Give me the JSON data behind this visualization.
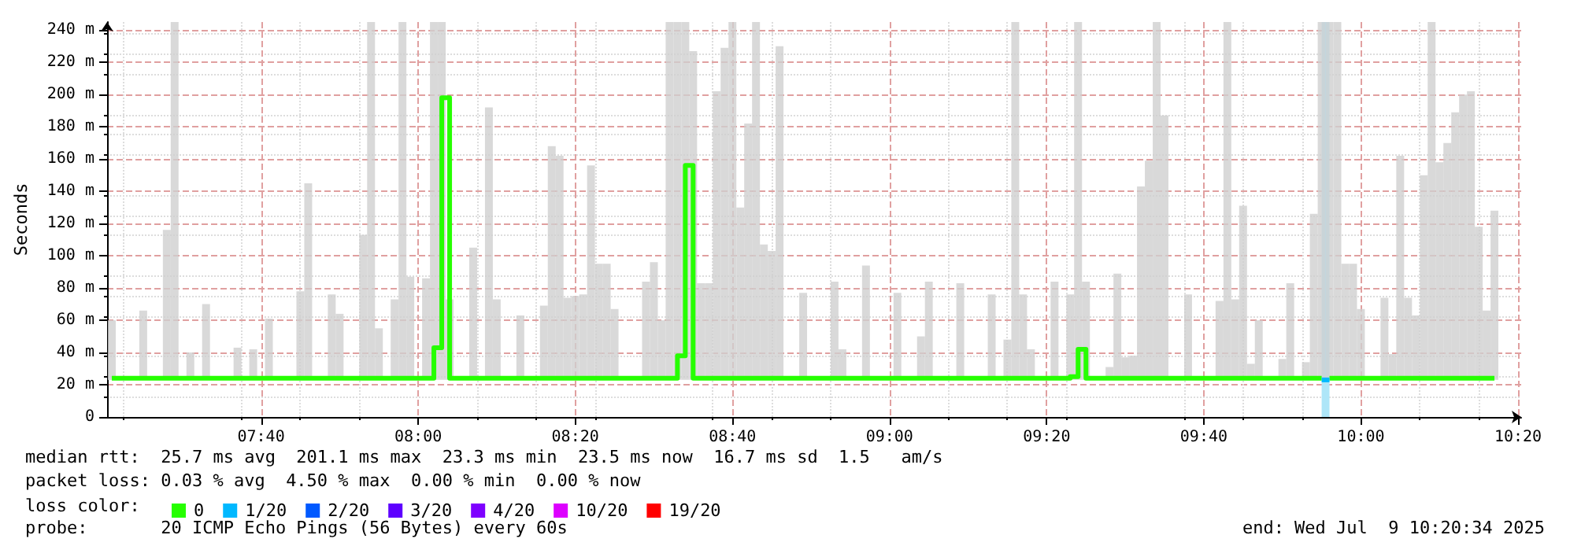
{
  "chart_data": {
    "type": "step",
    "ylabel": "Seconds",
    "legend_title": "loss color:",
    "annotations": [
      "median rtt:  25.7 ms avg  201.1 ms max  23.3 ms min  23.5 ms now  16.7 ms sd  1.5   am/s",
      "packet loss: 0.03 % avg  4.50 % max  0.00 % min  0.00 % now",
      "probe:       20 ICMP Echo Pings (56 Bytes) every 60s",
      "end: Wed Jul  9 10:20:34 2025"
    ],
    "x": [
      7.35,
      7.3667,
      7.3833,
      7.4,
      7.4167,
      7.4333,
      7.45,
      7.4667,
      7.4833,
      7.5,
      7.5167,
      7.5333,
      7.55,
      7.5667,
      7.5833,
      7.6,
      7.6167,
      7.6333,
      7.65,
      7.6667,
      7.6833,
      7.7,
      7.7167,
      7.7333,
      7.75,
      7.7667,
      7.7833,
      7.8,
      7.8167,
      7.8333,
      7.85,
      7.8667,
      7.8833,
      7.9,
      7.9167,
      7.9333,
      7.95,
      7.9667,
      7.9833,
      8.0,
      8.0167,
      8.0333,
      8.05,
      8.0667,
      8.0833,
      8.1,
      8.1167,
      8.1333,
      8.15,
      8.1667,
      8.1833,
      8.2,
      8.2167,
      8.2333,
      8.25,
      8.2667,
      8.2833,
      8.3,
      8.3167,
      8.3333,
      8.35,
      8.3667,
      8.3833,
      8.4,
      8.4167,
      8.4333,
      8.45,
      8.4667,
      8.4833,
      8.5,
      8.5167,
      8.5333,
      8.55,
      8.5667,
      8.5833,
      8.6,
      8.6167,
      8.6333,
      8.65,
      8.6667,
      8.6833,
      8.7,
      8.7167,
      8.7333,
      8.75,
      8.7667,
      8.7833,
      8.8,
      8.8167,
      8.8333,
      8.85,
      8.8667,
      8.8833,
      8.9,
      8.9167,
      8.9333,
      8.95,
      8.9667,
      8.9833,
      9.0,
      9.0167,
      9.0333,
      9.05,
      9.0667,
      9.0833,
      9.1,
      9.1167,
      9.1333,
      9.15,
      9.1667,
      9.1833,
      9.2,
      9.2167,
      9.2333,
      9.25,
      9.2667,
      9.2833,
      9.3,
      9.3167,
      9.3333,
      9.35,
      9.3667,
      9.3833,
      9.4,
      9.4167,
      9.4333,
      9.45,
      9.4667,
      9.4833,
      9.5,
      9.5167,
      9.5333,
      9.55,
      9.5667,
      9.5833,
      9.6,
      9.6167,
      9.6333,
      9.65,
      9.6667,
      9.6833,
      9.7,
      9.7167,
      9.7333,
      9.75,
      9.7667,
      9.7833,
      9.8,
      9.8167,
      9.8333,
      9.85,
      9.8667,
      9.8833,
      9.9,
      9.9167,
      9.9333,
      9.95,
      9.9667,
      9.9833,
      10.0,
      10.0167,
      10.0333,
      10.05,
      10.0667,
      10.0833,
      10.1,
      10.1167,
      10.1333,
      10.15,
      10.1667,
      10.1833,
      10.2,
      10.2167,
      10.2333,
      10.25,
      10.2667,
      10.2833
    ],
    "series": [
      {
        "name": "0",
        "color": "#26ff00",
        "values": [
          24,
          24,
          24,
          24,
          24,
          24,
          24,
          24,
          24,
          24,
          24,
          24,
          24,
          24,
          24,
          24,
          24,
          24,
          24,
          24,
          24,
          24,
          24,
          24,
          24,
          24,
          24,
          24,
          24,
          24,
          24,
          24,
          24,
          24,
          24,
          24,
          24,
          24,
          24,
          24,
          24,
          43,
          198,
          24,
          24,
          24,
          24,
          24,
          24,
          24,
          24,
          24,
          24,
          24,
          24,
          24,
          24,
          24,
          24,
          24,
          24,
          24,
          24,
          24,
          24,
          24,
          24,
          24,
          24,
          24,
          24,
          24,
          38,
          156,
          24,
          24,
          24,
          24,
          24,
          24,
          24,
          24,
          24,
          24,
          24,
          24,
          24,
          24,
          24,
          24,
          24,
          24,
          24,
          24,
          24,
          24,
          24,
          24,
          24,
          24,
          24,
          24,
          24,
          24,
          24,
          24,
          24,
          24,
          24,
          24,
          24,
          24,
          24,
          24,
          24,
          24,
          24,
          24,
          24,
          24,
          24,
          24,
          25,
          42,
          24,
          24,
          24,
          24,
          24,
          24,
          24,
          24,
          24,
          24,
          24,
          24,
          24,
          24,
          24,
          24,
          24,
          24,
          24,
          24,
          24,
          24,
          24,
          24,
          24,
          24,
          24,
          24,
          24,
          24,
          null,
          24,
          24,
          24,
          24,
          24,
          24,
          24,
          24,
          24,
          24,
          24,
          24,
          24,
          24,
          24,
          24,
          24,
          24,
          24,
          24,
          24,
          24
        ],
        "lower": [
          23,
          null,
          null,
          null,
          23,
          null,
          null,
          23,
          23,
          null,
          23,
          null,
          23,
          null,
          null,
          null,
          23,
          null,
          23,
          null,
          23,
          null,
          null,
          null,
          23,
          23,
          null,
          null,
          23,
          23,
          null,
          null,
          23,
          23,
          23,
          null,
          23,
          23,
          23,
          null,
          23,
          23,
          23,
          23,
          null,
          null,
          23,
          null,
          23,
          23,
          null,
          null,
          23,
          null,
          null,
          23,
          23,
          23,
          23,
          23,
          23,
          23,
          23,
          23,
          23,
          null,
          null,
          null,
          23,
          23,
          23,
          23,
          23,
          23,
          23,
          23,
          23,
          23,
          23,
          23,
          23,
          23,
          23,
          23,
          23,
          23,
          null,
          null,
          23,
          null,
          null,
          null,
          23,
          23,
          null,
          null,
          23,
          null,
          null,
          null,
          23,
          null,
          null,
          23,
          23,
          null,
          null,
          null,
          23,
          null,
          null,
          null,
          23,
          null,
          23,
          23,
          23,
          23,
          null,
          null,
          23,
          null,
          23,
          23,
          23,
          null,
          null,
          23,
          23,
          23,
          23,
          23,
          23,
          23,
          23,
          null,
          null,
          23,
          null,
          null,
          null,
          23,
          23,
          23,
          23,
          23,
          23,
          null,
          null,
          23,
          23,
          null,
          23,
          23,
          23,
          23,
          23,
          23,
          23,
          23,
          null,
          null,
          23,
          23,
          23,
          23,
          23,
          23,
          23,
          23,
          23,
          23,
          23,
          23,
          23,
          23,
          23
        ],
        "upper": [
          60,
          null,
          null,
          null,
          66,
          null,
          null,
          116,
          245,
          null,
          40,
          null,
          70,
          null,
          null,
          null,
          43,
          null,
          42,
          null,
          61,
          null,
          null,
          null,
          78,
          145,
          null,
          null,
          76,
          64,
          null,
          null,
          113,
          245,
          55,
          null,
          73,
          245,
          87,
          null,
          86,
          245,
          245,
          73,
          null,
          null,
          105,
          null,
          192,
          73,
          null,
          null,
          63,
          null,
          null,
          69,
          168,
          162,
          74,
          75,
          76,
          156,
          95,
          95,
          67,
          null,
          null,
          null,
          84,
          96,
          60,
          245,
          245,
          245,
          227,
          83,
          83,
          202,
          229,
          245,
          130,
          182,
          245,
          107,
          103,
          230,
          null,
          null,
          77,
          null,
          null,
          null,
          84,
          42,
          null,
          null,
          94,
          null,
          null,
          null,
          77,
          null,
          null,
          50,
          84,
          null,
          null,
          null,
          83,
          null,
          null,
          null,
          76,
          null,
          48,
          245,
          76,
          42,
          null,
          null,
          84,
          null,
          76,
          245,
          84,
          null,
          null,
          31,
          89,
          37,
          38,
          143,
          159,
          245,
          187,
          null,
          null,
          76,
          null,
          null,
          null,
          72,
          245,
          73,
          131,
          33,
          60,
          null,
          null,
          36,
          83,
          null,
          34,
          126,
          245,
          245,
          245,
          95,
          95,
          67,
          null,
          null,
          74,
          39,
          162,
          74,
          63,
          150,
          245,
          158,
          170,
          189,
          200,
          202,
          118,
          66,
          128
        ]
      },
      {
        "name": "1/20",
        "color": "#00b8ff",
        "x": [
          9.9167,
          9.9333
        ],
        "values": [
          23,
          23
        ]
      },
      {
        "name": "2/20",
        "color": "#0059ff",
        "values": [
          null,
          null,
          null,
          null,
          null,
          null,
          null,
          null,
          null,
          null,
          null,
          null,
          null,
          null,
          null,
          null,
          null,
          null,
          null,
          null,
          null,
          null,
          null,
          null,
          null,
          null,
          null,
          null,
          null,
          null,
          null,
          null,
          null,
          null,
          null,
          null,
          null,
          null,
          null,
          null,
          null,
          null,
          null,
          null,
          null,
          null,
          null,
          null,
          null,
          null,
          null,
          null,
          null,
          null,
          null,
          null,
          null,
          null,
          null,
          null,
          null,
          null,
          null,
          null,
          null,
          null,
          null,
          null,
          null,
          null,
          null,
          null,
          null,
          null,
          null,
          null,
          null,
          null,
          null,
          null,
          null,
          null,
          null,
          null,
          null,
          null,
          null,
          null,
          null,
          null,
          null,
          null,
          null,
          null,
          null,
          null,
          null,
          null,
          null,
          null,
          null,
          null,
          null,
          null,
          null,
          null,
          null,
          null,
          null,
          null,
          null,
          null,
          null,
          null,
          null,
          null,
          null,
          null,
          null,
          null,
          null,
          null,
          null,
          null,
          null,
          null,
          null,
          null,
          null,
          null,
          null,
          null,
          null,
          null,
          null,
          null,
          null,
          null,
          null,
          null,
          null,
          null,
          null,
          null,
          null,
          null,
          null,
          null,
          null,
          null,
          null,
          null,
          null,
          null,
          null,
          null,
          null,
          null,
          null,
          null,
          null,
          null,
          null,
          null,
          null,
          null,
          null,
          null,
          null,
          null,
          null,
          null,
          null,
          null,
          null,
          null,
          null
        ]
      },
      {
        "name": "3/20",
        "color": "#5e00ff",
        "values": [
          null,
          null,
          null,
          null,
          null,
          null,
          null,
          null,
          null,
          null,
          null,
          null,
          null,
          null,
          null,
          null,
          null,
          null,
          null,
          null,
          null,
          null,
          null,
          null,
          null,
          null,
          null,
          null,
          null,
          null,
          null,
          null,
          null,
          null,
          null,
          null,
          null,
          null,
          null,
          null,
          null,
          null,
          null,
          null,
          null,
          null,
          null,
          null,
          null,
          null,
          null,
          null,
          null,
          null,
          null,
          null,
          null,
          null,
          null,
          null,
          null,
          null,
          null,
          null,
          null,
          null,
          null,
          null,
          null,
          null,
          null,
          null,
          null,
          null,
          null,
          null,
          null,
          null,
          null,
          null,
          null,
          null,
          null,
          null,
          null,
          null,
          null,
          null,
          null,
          null,
          null,
          null,
          null,
          null,
          null,
          null,
          null,
          null,
          null,
          null,
          null,
          null,
          null,
          null,
          null,
          null,
          null,
          null,
          null,
          null,
          null,
          null,
          null,
          null,
          null,
          null,
          null,
          null,
          null,
          null,
          null,
          null,
          null,
          null,
          null,
          null,
          null,
          null,
          null,
          null,
          null,
          null,
          null,
          null,
          null,
          null,
          null,
          null,
          null,
          null,
          null,
          null,
          null,
          null,
          null,
          null,
          null,
          null,
          null,
          null,
          null,
          null,
          null,
          null,
          null,
          null,
          null,
          null,
          null,
          null,
          null,
          null,
          null,
          null,
          null,
          null,
          null,
          null,
          null,
          null,
          null,
          null,
          null,
          null,
          null,
          null,
          null
        ]
      },
      {
        "name": "4/20",
        "color": "#7e00ff",
        "values": [
          null,
          null,
          null,
          null,
          null,
          null,
          null,
          null,
          null,
          null,
          null,
          null,
          null,
          null,
          null,
          null,
          null,
          null,
          null,
          null,
          null,
          null,
          null,
          null,
          null,
          null,
          null,
          null,
          null,
          null,
          null,
          null,
          null,
          null,
          null,
          null,
          null,
          null,
          null,
          null,
          null,
          null,
          null,
          null,
          null,
          null,
          null,
          null,
          null,
          null,
          null,
          null,
          null,
          null,
          null,
          null,
          null,
          null,
          null,
          null,
          null,
          null,
          null,
          null,
          null,
          null,
          null,
          null,
          null,
          null,
          null,
          null,
          null,
          null,
          null,
          null,
          null,
          null,
          null,
          null,
          null,
          null,
          null,
          null,
          null,
          null,
          null,
          null,
          null,
          null,
          null,
          null,
          null,
          null,
          null,
          null,
          null,
          null,
          null,
          null,
          null,
          null,
          null,
          null,
          null,
          null,
          null,
          null,
          null,
          null,
          null,
          null,
          null,
          null,
          null,
          null,
          null,
          null,
          null,
          null,
          null,
          null,
          null,
          null,
          null,
          null,
          null,
          null,
          null,
          null,
          null,
          null,
          null,
          null,
          null,
          null,
          null,
          null,
          null,
          null,
          null,
          null,
          null,
          null,
          null,
          null,
          null,
          null,
          null,
          null,
          null,
          null,
          null,
          null,
          null,
          null,
          null,
          null,
          null,
          null,
          null,
          null,
          null,
          null,
          null,
          null,
          null,
          null,
          null,
          null,
          null,
          null,
          null,
          null,
          null,
          null,
          null
        ]
      },
      {
        "name": "10/20",
        "color": "#dd00ff",
        "values": [
          null,
          null,
          null,
          null,
          null,
          null,
          null,
          null,
          null,
          null,
          null,
          null,
          null,
          null,
          null,
          null,
          null,
          null,
          null,
          null,
          null,
          null,
          null,
          null,
          null,
          null,
          null,
          null,
          null,
          null,
          null,
          null,
          null,
          null,
          null,
          null,
          null,
          null,
          null,
          null,
          null,
          null,
          null,
          null,
          null,
          null,
          null,
          null,
          null,
          null,
          null,
          null,
          null,
          null,
          null,
          null,
          null,
          null,
          null,
          null,
          null,
          null,
          null,
          null,
          null,
          null,
          null,
          null,
          null,
          null,
          null,
          null,
          null,
          null,
          null,
          null,
          null,
          null,
          null,
          null,
          null,
          null,
          null,
          null,
          null,
          null,
          null,
          null,
          null,
          null,
          null,
          null,
          null,
          null,
          null,
          null,
          null,
          null,
          null,
          null,
          null,
          null,
          null,
          null,
          null,
          null,
          null,
          null,
          null,
          null,
          null,
          null,
          null,
          null,
          null,
          null,
          null,
          null,
          null,
          null,
          null,
          null,
          null,
          null,
          null,
          null,
          null,
          null,
          null,
          null,
          null,
          null,
          null,
          null,
          null,
          null,
          null,
          null,
          null,
          null,
          null,
          null,
          null,
          null,
          null,
          null,
          null,
          null,
          null,
          null,
          null,
          null,
          null,
          null,
          null,
          null,
          null,
          null,
          null,
          null,
          null,
          null,
          null,
          null,
          null,
          null,
          null,
          null,
          null,
          null,
          null,
          null,
          null,
          null,
          null,
          null,
          null
        ]
      },
      {
        "name": "19/20",
        "color": "#ff0000",
        "values": [
          null,
          null,
          null,
          null,
          null,
          null,
          null,
          null,
          null,
          null,
          null,
          null,
          null,
          null,
          null,
          null,
          null,
          null,
          null,
          null,
          null,
          null,
          null,
          null,
          null,
          null,
          null,
          null,
          null,
          null,
          null,
          null,
          null,
          null,
          null,
          null,
          null,
          null,
          null,
          null,
          null,
          null,
          null,
          null,
          null,
          null,
          null,
          null,
          null,
          null,
          null,
          null,
          null,
          null,
          null,
          null,
          null,
          null,
          null,
          null,
          null,
          null,
          null,
          null,
          null,
          null,
          null,
          null,
          null,
          null,
          null,
          null,
          null,
          null,
          null,
          null,
          null,
          null,
          null,
          null,
          null,
          null,
          null,
          null,
          null,
          null,
          null,
          null,
          null,
          null,
          null,
          null,
          null,
          null,
          null,
          null,
          null,
          null,
          null,
          null,
          null,
          null,
          null,
          null,
          null,
          null,
          null,
          null,
          null,
          null,
          null,
          null,
          null,
          null,
          null,
          null,
          null,
          null,
          null,
          null,
          null,
          null,
          null,
          null,
          null,
          null,
          null,
          null,
          null,
          null,
          null,
          null,
          null,
          null,
          null,
          null,
          null,
          null,
          null,
          null,
          null,
          null,
          null,
          null,
          null,
          null,
          null,
          null,
          null,
          null,
          null,
          null,
          null,
          null,
          null,
          null,
          null,
          null,
          null,
          null,
          null,
          null,
          null,
          null,
          null,
          null,
          null,
          null,
          null,
          null,
          null,
          null,
          null,
          null,
          null,
          null,
          null
        ]
      }
    ],
    "bands": [
      {
        "axis": "x",
        "from": 9.9167,
        "to": 9.9333,
        "color": "#aee6f8"
      }
    ],
    "xlim": [
      7.34,
      10.34
    ],
    "xticks": [
      {
        "value": 7.6667,
        "label": "07:40"
      },
      {
        "value": 8,
        "label": "08:00"
      },
      {
        "value": 8.3333,
        "label": "08:20"
      },
      {
        "value": 8.6667,
        "label": "08:40"
      },
      {
        "value": 9,
        "label": "09:00"
      },
      {
        "value": 9.3333,
        "label": "09:20"
      },
      {
        "value": 9.6667,
        "label": "09:40"
      },
      {
        "value": 10,
        "label": "10:00"
      },
      {
        "value": 10.3333,
        "label": "10:20"
      }
    ],
    "ylim": [
      0,
      245
    ],
    "yticks": [
      0,
      {
        "value": 20,
        "label": "20 m"
      },
      {
        "value": 40,
        "label": "40 m"
      },
      {
        "value": 60,
        "label": "60 m"
      },
      {
        "value": 80,
        "label": "80 m"
      },
      {
        "value": 100,
        "label": "100 m"
      },
      {
        "value": 120,
        "label": "120 m"
      },
      {
        "value": 140,
        "label": "140 m"
      },
      {
        "value": 160,
        "label": "160 m"
      },
      {
        "value": 180,
        "label": "180 m"
      },
      {
        "value": 200,
        "label": "200 m"
      },
      {
        "value": 220,
        "label": "220 m"
      },
      {
        "value": 240,
        "label": "240 m"
      }
    ],
    "grid": true,
    "legend": "bottom left",
    "marker": "none",
    "line_style": "solid"
  }
}
